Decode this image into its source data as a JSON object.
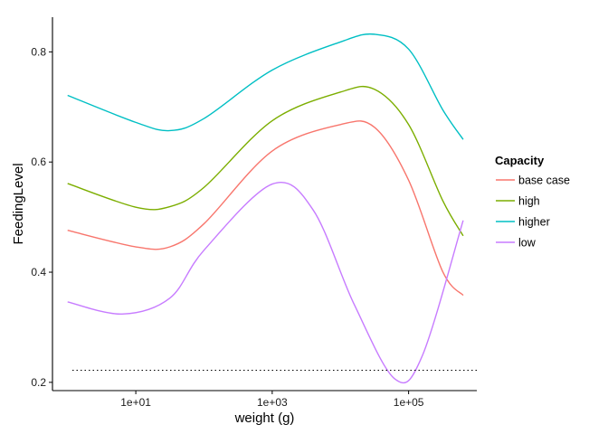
{
  "chart_data": {
    "type": "line",
    "xlabel": "weight (g)",
    "ylabel": "FeedingLevel",
    "x_scale": "log10",
    "x_ticks": [
      10,
      1000,
      100000
    ],
    "x_tick_labels": [
      "1e+01",
      "1e+03",
      "1e+05"
    ],
    "xlim": [
      0.6,
      1000000
    ],
    "y_ticks": [
      0.2,
      0.4,
      0.6,
      0.8
    ],
    "y_tick_labels": [
      "0.2",
      "0.4",
      "0.6",
      "0.8"
    ],
    "ylim": [
      0.185,
      0.863
    ],
    "grid": false,
    "legend_title": "Capacity",
    "legend_position": "right",
    "reference_line": {
      "y": 0.222,
      "style": "dotted"
    },
    "series": [
      {
        "name": "base case",
        "color": "#F8766D",
        "x": [
          1,
          10,
          31.6,
          100,
          1000,
          10000,
          31623,
          100000,
          316228,
          630957
        ],
        "y": [
          0.476,
          0.446,
          0.446,
          0.488,
          0.62,
          0.668,
          0.663,
          0.567,
          0.401,
          0.358
        ]
      },
      {
        "name": "high",
        "color": "#7CAE00",
        "x": [
          1,
          10,
          31.6,
          100,
          1000,
          10000,
          31623,
          100000,
          316228,
          630957
        ],
        "y": [
          0.561,
          0.518,
          0.519,
          0.554,
          0.675,
          0.727,
          0.732,
          0.668,
          0.53,
          0.466
        ]
      },
      {
        "name": "higher",
        "color": "#00BFC4",
        "x": [
          1,
          10,
          31.6,
          100,
          1000,
          10000,
          31623,
          100000,
          316228,
          630957
        ],
        "y": [
          0.721,
          0.672,
          0.657,
          0.679,
          0.767,
          0.818,
          0.832,
          0.805,
          0.695,
          0.641
        ]
      },
      {
        "name": "low",
        "color": "#C77CFF",
        "x": [
          1,
          6.3,
          31.6,
          100,
          1000,
          3981,
          15849,
          63096,
          158489,
          630957
        ],
        "y": [
          0.346,
          0.324,
          0.353,
          0.44,
          0.56,
          0.513,
          0.342,
          0.206,
          0.248,
          0.494
        ]
      }
    ]
  }
}
